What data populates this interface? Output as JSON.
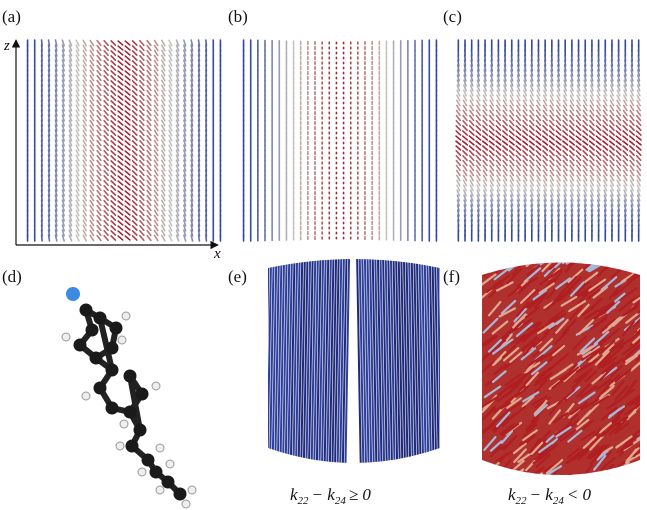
{
  "panels": [
    {
      "label": "(a)"
    },
    {
      "label": "(b)"
    },
    {
      "label": "(c)"
    },
    {
      "label": "(d)"
    },
    {
      "label": "(e)",
      "caption": [
        "k",
        "22",
        "− k",
        "24",
        "≥ 0"
      ]
    },
    {
      "label": "(f)",
      "caption": [
        "k",
        "22",
        "− k",
        "24",
        "< 0"
      ]
    }
  ],
  "axes": {
    "vertical": "z",
    "horizontal": "x"
  }
}
